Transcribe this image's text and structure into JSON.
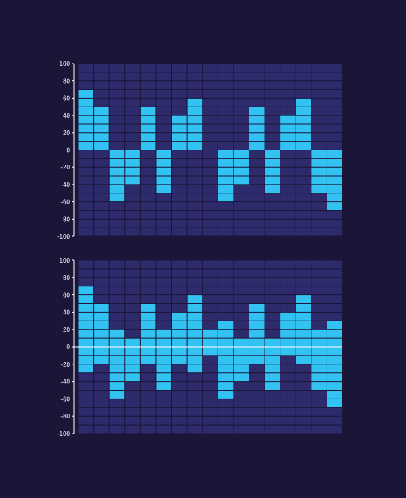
{
  "chart_data": [
    {
      "type": "bar",
      "title": "",
      "xlabel": "",
      "ylabel": "",
      "ylim": [
        -100,
        100
      ],
      "yticks": [
        "100",
        "80",
        "60",
        "40",
        "20",
        "0",
        "-20",
        "-40",
        "-60",
        "-80",
        "-100"
      ],
      "grid": true,
      "legend": "none",
      "values": [
        70,
        50,
        -60,
        -40,
        50,
        -50,
        40,
        60,
        0,
        -60,
        -40,
        50,
        -50,
        40,
        60,
        -50,
        -70
      ]
    },
    {
      "type": "bar",
      "title": "",
      "xlabel": "",
      "ylabel": "",
      "ylim": [
        -100,
        100
      ],
      "yticks": [
        "100",
        "80",
        "60",
        "40",
        "20",
        "0",
        "-20",
        "-40",
        "-60",
        "-80",
        "-100"
      ],
      "grid": true,
      "legend": "none",
      "ranges": [
        [
          -30,
          70
        ],
        [
          -20,
          50
        ],
        [
          -60,
          20
        ],
        [
          -40,
          10
        ],
        [
          -20,
          50
        ],
        [
          -50,
          20
        ],
        [
          -20,
          40
        ],
        [
          -30,
          60
        ],
        [
          -10,
          20
        ],
        [
          -60,
          30
        ],
        [
          -40,
          10
        ],
        [
          -20,
          50
        ],
        [
          -50,
          10
        ],
        [
          -10,
          40
        ],
        [
          -20,
          60
        ],
        [
          -50,
          20
        ],
        [
          -70,
          30
        ]
      ]
    }
  ],
  "colors": {
    "background": "#1b1537",
    "plot_area": "#2d2b6b",
    "grid": "#1b1537",
    "bar": "#33c3f2",
    "axis": "#ffffff",
    "text": "#ffffff"
  }
}
